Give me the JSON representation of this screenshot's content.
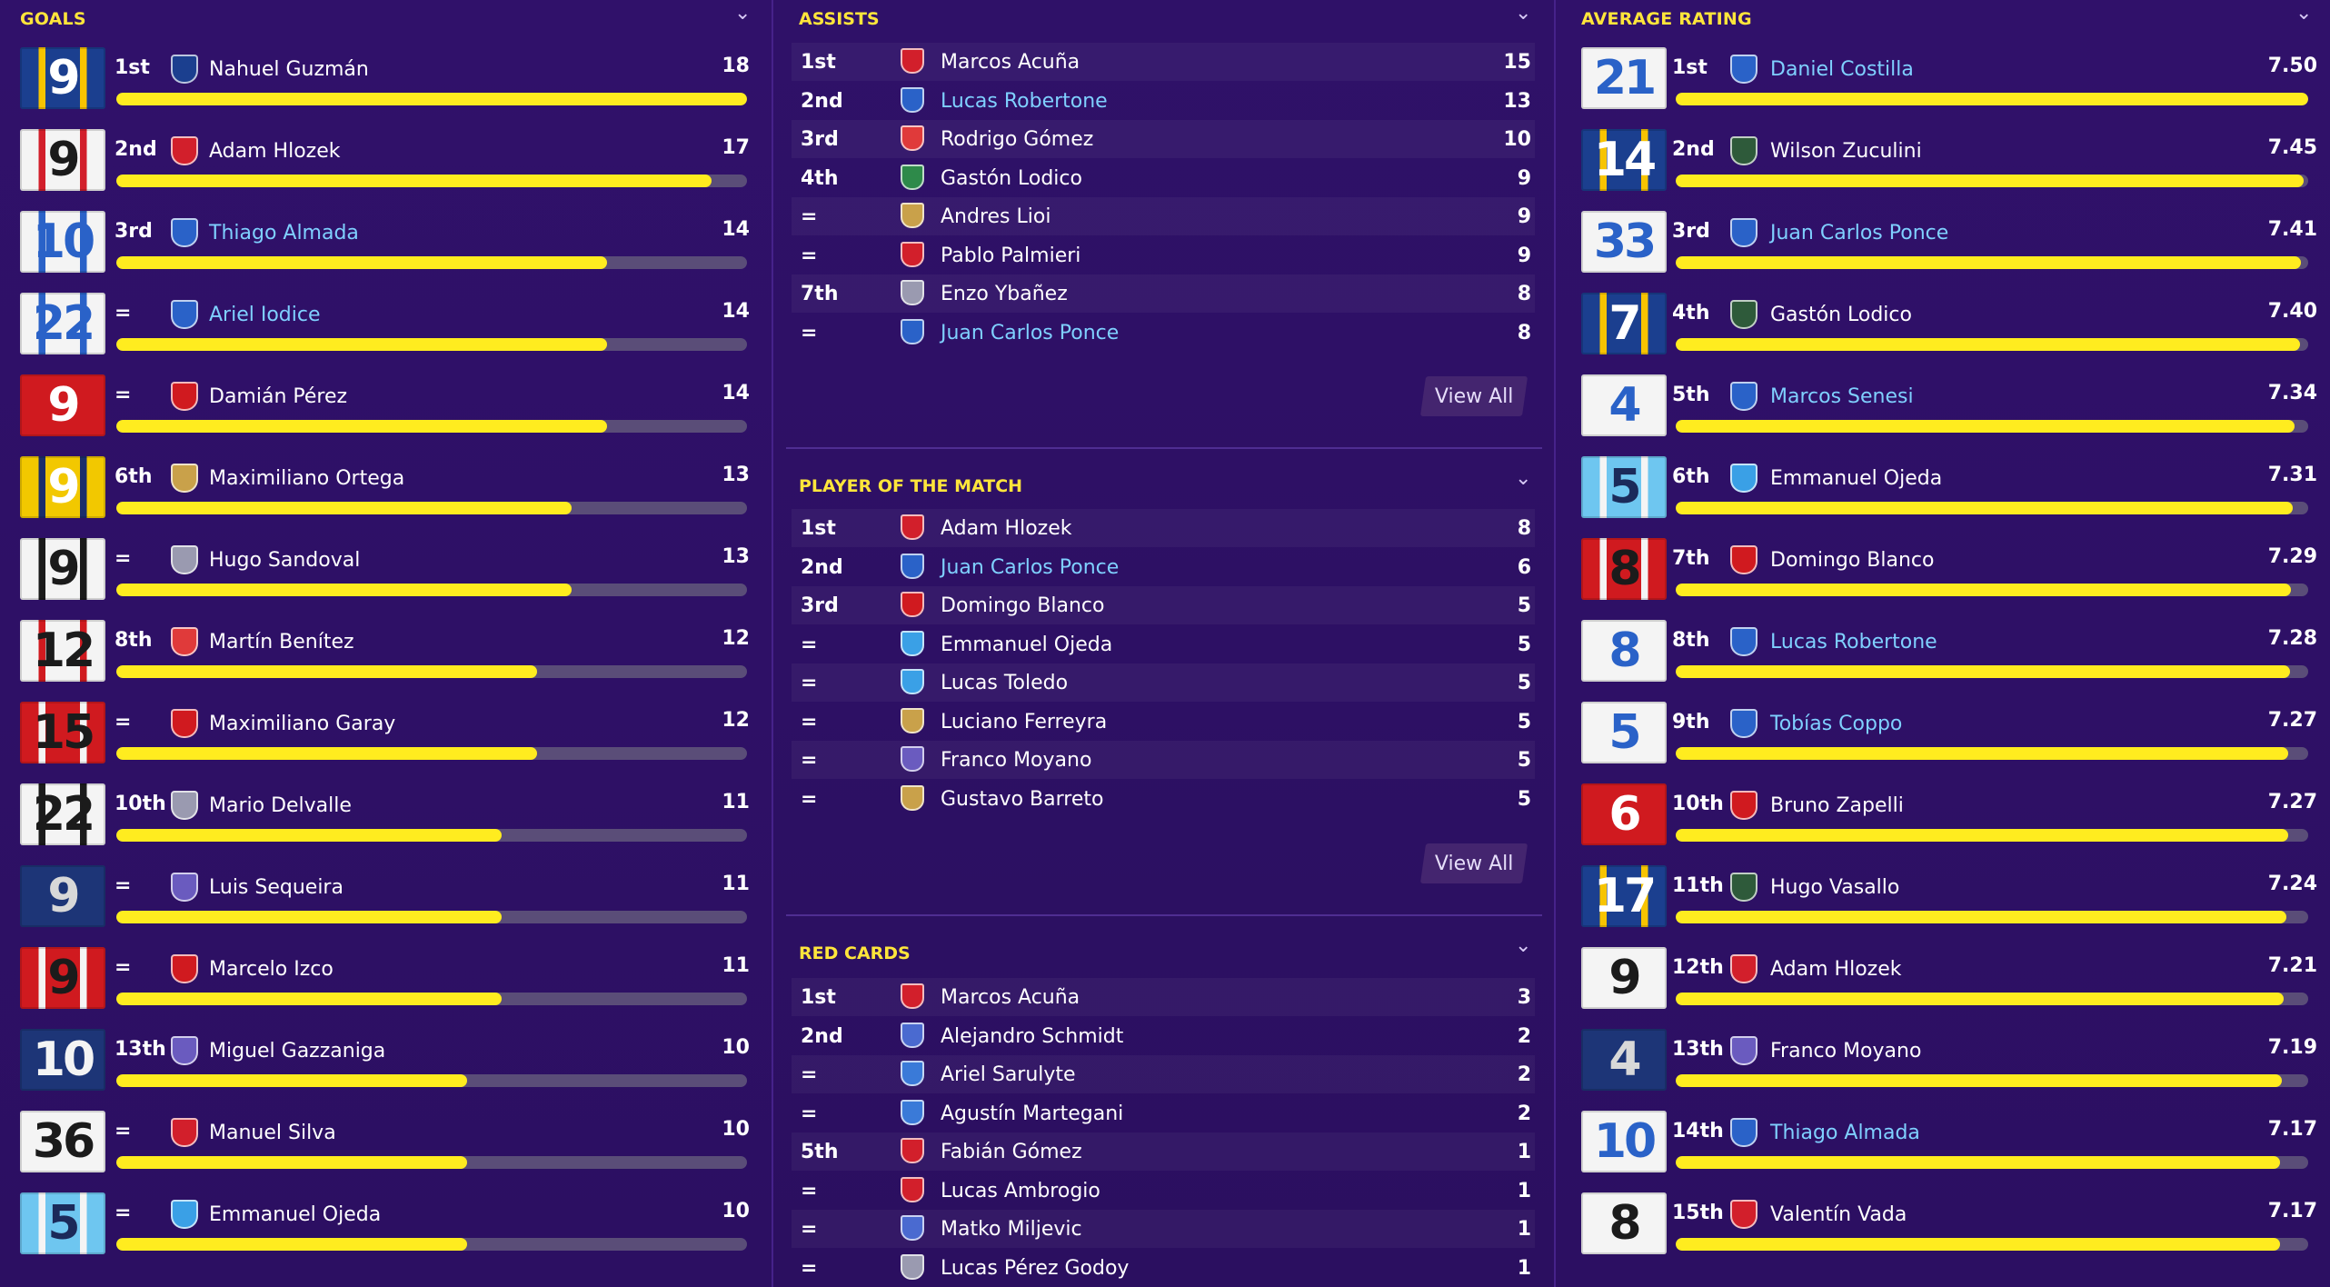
{
  "goals": {
    "title": "GOALS",
    "max": 18,
    "rows": [
      {
        "num": "9",
        "rank": "1st",
        "name": "Nahuel Guzmán",
        "value": "18",
        "link": false,
        "shirt": "#1b3f8f",
        "fg": "#ffffff",
        "stripe": "#f7c400",
        "crest": "#1b3f8f"
      },
      {
        "num": "9",
        "rank": "2nd",
        "name": "Adam Hlozek",
        "value": "17",
        "link": false,
        "shirt": "#f4f4f4",
        "fg": "#1b1b1b",
        "stripe": "#d21f2b",
        "crest": "#d21f2b"
      },
      {
        "num": "10",
        "rank": "3rd",
        "name": "Thiago Almada",
        "value": "14",
        "link": true,
        "shirt": "#f4f4f4",
        "fg": "#2a62c8",
        "stripe": "#2a62c8",
        "crest": "#2a62c8"
      },
      {
        "num": "22",
        "rank": "=",
        "name": "Ariel Iodice",
        "value": "14",
        "link": true,
        "shirt": "#f4f4f4",
        "fg": "#2a62c8",
        "stripe": "#2a62c8",
        "crest": "#2a62c8"
      },
      {
        "num": "9",
        "rank": "=",
        "name": "Damián Pérez",
        "value": "14",
        "link": false,
        "shirt": "#d01a1f",
        "fg": "#ffffff",
        "stripe": "#d01a1f",
        "crest": "#d01a1f"
      },
      {
        "num": "9",
        "rank": "6th",
        "name": "Maximiliano Ortega",
        "value": "13",
        "link": false,
        "shirt": "#f2c800",
        "fg": "#ffffff",
        "stripe": "#1a2d6b",
        "crest": "#c9a14a"
      },
      {
        "num": "9",
        "rank": "=",
        "name": "Hugo Sandoval",
        "value": "13",
        "link": false,
        "shirt": "#f4f4f4",
        "fg": "#1b1b1b",
        "stripe": "#1b1b1b",
        "crest": "#9a9ab0"
      },
      {
        "num": "12",
        "rank": "8th",
        "name": "Martín Benítez",
        "value": "12",
        "link": false,
        "shirt": "#f4f4f4",
        "fg": "#1b1b1b",
        "stripe": "#d01a1f",
        "crest": "#e03a3a"
      },
      {
        "num": "15",
        "rank": "=",
        "name": "Maximiliano Garay",
        "value": "12",
        "link": false,
        "shirt": "#d01a1f",
        "fg": "#1b1b1b",
        "stripe": "#f4f4f4",
        "crest": "#d01a1f"
      },
      {
        "num": "22",
        "rank": "10th",
        "name": "Mario Delvalle",
        "value": "11",
        "link": false,
        "shirt": "#f4f4f4",
        "fg": "#1b1b1b",
        "stripe": "#1b1b1b",
        "crest": "#9a9ab0"
      },
      {
        "num": "9",
        "rank": "=",
        "name": "Luis Sequeira",
        "value": "11",
        "link": false,
        "shirt": "#1d3577",
        "fg": "#d8d8d8",
        "stripe": "#1d3577",
        "crest": "#6a5bbf"
      },
      {
        "num": "9",
        "rank": "=",
        "name": "Marcelo Izco",
        "value": "11",
        "link": false,
        "shirt": "#d01a1f",
        "fg": "#1b1b1b",
        "stripe": "#f4f4f4",
        "crest": "#d01a1f"
      },
      {
        "num": "10",
        "rank": "13th",
        "name": "Miguel Gazzaniga",
        "value": "10",
        "link": false,
        "shirt": "#1d3577",
        "fg": "#f4f4f4",
        "stripe": "#1d3577",
        "crest": "#6a5bbf"
      },
      {
        "num": "36",
        "rank": "=",
        "name": "Manuel Silva",
        "value": "10",
        "link": false,
        "shirt": "#f4f4f4",
        "fg": "#1b1b1b",
        "stripe": "#f4f4f4",
        "crest": "#d21f2b"
      },
      {
        "num": "5",
        "rank": "=",
        "name": "Emmanuel Ojeda",
        "value": "10",
        "link": false,
        "shirt": "#6ec6f0",
        "fg": "#1b2a5a",
        "stripe": "#f4f4f4",
        "crest": "#3aa0e6"
      }
    ]
  },
  "assists": {
    "title": "ASSISTS",
    "view_all": "View All",
    "rows": [
      {
        "rank": "1st",
        "name": "Marcos Acuña",
        "value": "15",
        "link": false,
        "crest": "#d21f2b"
      },
      {
        "rank": "2nd",
        "name": "Lucas Robertone",
        "value": "13",
        "link": true,
        "crest": "#2a62c8"
      },
      {
        "rank": "3rd",
        "name": "Rodrigo Gómez",
        "value": "10",
        "link": false,
        "crest": "#e03a3a"
      },
      {
        "rank": "4th",
        "name": "Gastón Lodico",
        "value": "9",
        "link": false,
        "crest": "#2e8a4a"
      },
      {
        "rank": "=",
        "name": "Andres Lioi",
        "value": "9",
        "link": false,
        "crest": "#c9a14a"
      },
      {
        "rank": "=",
        "name": "Pablo Palmieri",
        "value": "9",
        "link": false,
        "crest": "#d21f2b"
      },
      {
        "rank": "7th",
        "name": "Enzo Ybañez",
        "value": "8",
        "link": false,
        "crest": "#9a9ab0"
      },
      {
        "rank": "=",
        "name": "Juan Carlos Ponce",
        "value": "8",
        "link": true,
        "crest": "#2a62c8"
      }
    ]
  },
  "potm": {
    "title": "PLAYER OF THE MATCH",
    "view_all": "View All",
    "rows": [
      {
        "rank": "1st",
        "name": "Adam Hlozek",
        "value": "8",
        "link": false,
        "crest": "#d21f2b"
      },
      {
        "rank": "2nd",
        "name": "Juan Carlos Ponce",
        "value": "6",
        "link": true,
        "crest": "#2a62c8"
      },
      {
        "rank": "3rd",
        "name": "Domingo Blanco",
        "value": "5",
        "link": false,
        "crest": "#d01a1f"
      },
      {
        "rank": "=",
        "name": "Emmanuel Ojeda",
        "value": "5",
        "link": false,
        "crest": "#3aa0e6"
      },
      {
        "rank": "=",
        "name": "Lucas Toledo",
        "value": "5",
        "link": false,
        "crest": "#3aa0e6"
      },
      {
        "rank": "=",
        "name": "Luciano Ferreyra",
        "value": "5",
        "link": false,
        "crest": "#c9a14a"
      },
      {
        "rank": "=",
        "name": "Franco Moyano",
        "value": "5",
        "link": false,
        "crest": "#6a5bbf"
      },
      {
        "rank": "=",
        "name": "Gustavo Barreto",
        "value": "5",
        "link": false,
        "crest": "#c9a14a"
      }
    ]
  },
  "red_cards": {
    "title": "RED CARDS",
    "rows": [
      {
        "rank": "1st",
        "name": "Marcos Acuña",
        "value": "3",
        "link": false,
        "crest": "#d21f2b"
      },
      {
        "rank": "2nd",
        "name": "Alejandro Schmidt",
        "value": "2",
        "link": false,
        "crest": "#4a6ad0"
      },
      {
        "rank": "=",
        "name": "Ariel Sarulyte",
        "value": "2",
        "link": false,
        "crest": "#3a7ad8"
      },
      {
        "rank": "=",
        "name": "Agustín Martegani",
        "value": "2",
        "link": false,
        "crest": "#3a7ad8"
      },
      {
        "rank": "5th",
        "name": "Fabián Gómez",
        "value": "1",
        "link": false,
        "crest": "#d21f2b"
      },
      {
        "rank": "=",
        "name": "Lucas Ambrogio",
        "value": "1",
        "link": false,
        "crest": "#d21f2b"
      },
      {
        "rank": "=",
        "name": "Matko Miljevic",
        "value": "1",
        "link": false,
        "crest": "#4a6ad0"
      },
      {
        "rank": "=",
        "name": "Lucas Pérez Godoy",
        "value": "1",
        "link": false,
        "crest": "#9a9ab0"
      }
    ]
  },
  "avg_rating": {
    "title": "AVERAGE RATING",
    "rows": [
      {
        "num": "21",
        "rank": "1st",
        "name": "Daniel Costilla",
        "value": "7.50",
        "fill": 1.0,
        "link": true,
        "shirt": "#f4f4f4",
        "fg": "#2a62c8",
        "stripe": "#f4f4f4",
        "crest": "#2a62c8"
      },
      {
        "num": "14",
        "rank": "2nd",
        "name": "Wilson Zuculini",
        "value": "7.45",
        "fill": 0.993,
        "link": false,
        "shirt": "#1b3f8f",
        "fg": "#ffffff",
        "stripe": "#f7c400",
        "crest": "#2e5a3a"
      },
      {
        "num": "33",
        "rank": "3rd",
        "name": "Juan Carlos Ponce",
        "value": "7.41",
        "fill": 0.988,
        "link": true,
        "shirt": "#f4f4f4",
        "fg": "#2a62c8",
        "stripe": "#f4f4f4",
        "crest": "#2a62c8"
      },
      {
        "num": "7",
        "rank": "4th",
        "name": "Gastón Lodico",
        "value": "7.40",
        "fill": 0.987,
        "link": false,
        "shirt": "#1b3f8f",
        "fg": "#ffffff",
        "stripe": "#f7c400",
        "crest": "#2e5a3a"
      },
      {
        "num": "4",
        "rank": "5th",
        "name": "Marcos Senesi",
        "value": "7.34",
        "fill": 0.979,
        "link": true,
        "shirt": "#f4f4f4",
        "fg": "#2a62c8",
        "stripe": "#f4f4f4",
        "crest": "#2a62c8"
      },
      {
        "num": "5",
        "rank": "6th",
        "name": "Emmanuel Ojeda",
        "value": "7.31",
        "fill": 0.975,
        "link": false,
        "shirt": "#6ec6f0",
        "fg": "#1b2a5a",
        "stripe": "#f4f4f4",
        "crest": "#3aa0e6"
      },
      {
        "num": "8",
        "rank": "7th",
        "name": "Domingo Blanco",
        "value": "7.29",
        "fill": 0.972,
        "link": false,
        "shirt": "#d01a1f",
        "fg": "#1b1b1b",
        "stripe": "#f4f4f4",
        "crest": "#d01a1f"
      },
      {
        "num": "8",
        "rank": "8th",
        "name": "Lucas Robertone",
        "value": "7.28",
        "fill": 0.971,
        "link": true,
        "shirt": "#f4f4f4",
        "fg": "#2a62c8",
        "stripe": "#f4f4f4",
        "crest": "#2a62c8"
      },
      {
        "num": "5",
        "rank": "9th",
        "name": "Tobías Coppo",
        "value": "7.27",
        "fill": 0.969,
        "link": true,
        "shirt": "#f4f4f4",
        "fg": "#2a62c8",
        "stripe": "#f4f4f4",
        "crest": "#2a62c8"
      },
      {
        "num": "6",
        "rank": "10th",
        "name": "Bruno Zapelli",
        "value": "7.27",
        "fill": 0.969,
        "link": false,
        "shirt": "#d01a1f",
        "fg": "#ffffff",
        "stripe": "#d01a1f",
        "crest": "#d01a1f"
      },
      {
        "num": "17",
        "rank": "11th",
        "name": "Hugo Vasallo",
        "value": "7.24",
        "fill": 0.965,
        "link": false,
        "shirt": "#1b3f8f",
        "fg": "#ffffff",
        "stripe": "#f7c400",
        "crest": "#2e5a3a"
      },
      {
        "num": "9",
        "rank": "12th",
        "name": "Adam Hlozek",
        "value": "7.21",
        "fill": 0.961,
        "link": false,
        "shirt": "#f4f4f4",
        "fg": "#1b1b1b",
        "stripe": "#f4f4f4",
        "crest": "#d21f2b"
      },
      {
        "num": "4",
        "rank": "13th",
        "name": "Franco Moyano",
        "value": "7.19",
        "fill": 0.959,
        "link": false,
        "shirt": "#1d3577",
        "fg": "#d8d8d8",
        "stripe": "#1d3577",
        "crest": "#6a5bbf"
      },
      {
        "num": "10",
        "rank": "14th",
        "name": "Thiago Almada",
        "value": "7.17",
        "fill": 0.956,
        "link": true,
        "shirt": "#f4f4f4",
        "fg": "#2a62c8",
        "stripe": "#f4f4f4",
        "crest": "#2a62c8"
      },
      {
        "num": "8",
        "rank": "15th",
        "name": "Valentín Vada",
        "value": "7.17",
        "fill": 0.956,
        "link": false,
        "shirt": "#f4f4f4",
        "fg": "#1b1b1b",
        "stripe": "#f4f4f4",
        "crest": "#d21f2b"
      }
    ]
  }
}
